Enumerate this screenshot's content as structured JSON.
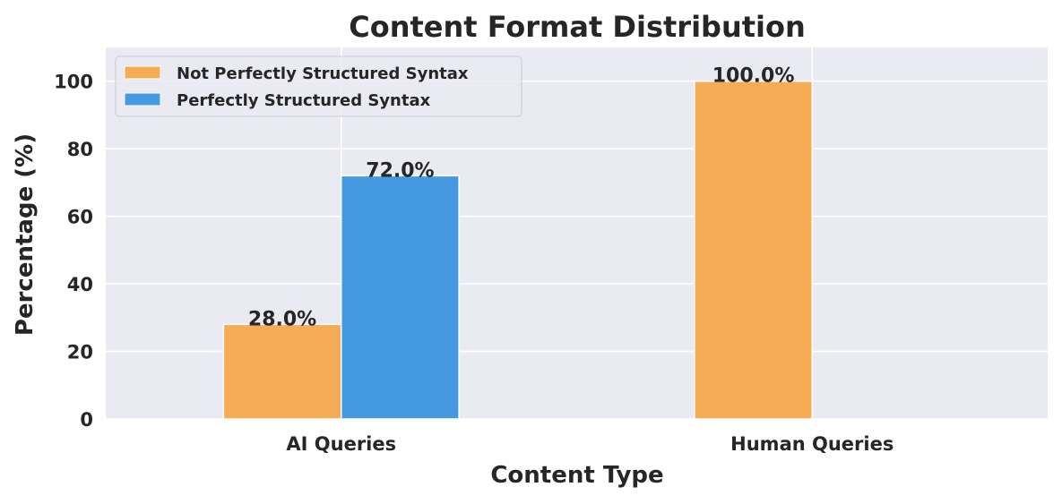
{
  "chart_data": {
    "type": "bar",
    "title": "Content Format Distribution",
    "xlabel": "Content Type",
    "ylabel": "Percentage (%)",
    "categories": [
      "AI Queries",
      "Human Queries"
    ],
    "series": [
      {
        "name": "Not Perfectly Structured Syntax",
        "values": [
          28.0,
          100.0
        ],
        "color": "#F5AC55",
        "labels": [
          "28.0%",
          "100.0%"
        ]
      },
      {
        "name": "Perfectly Structured Syntax",
        "values": [
          72.0,
          0.0
        ],
        "color": "#4499E0",
        "labels": [
          "72.0%",
          ""
        ]
      }
    ],
    "ylim": [
      0,
      110
    ],
    "yticks": [
      0,
      20,
      40,
      60,
      80,
      100
    ],
    "grid": true,
    "legend_position": "top-left",
    "background_color": "#EAEAF2"
  }
}
